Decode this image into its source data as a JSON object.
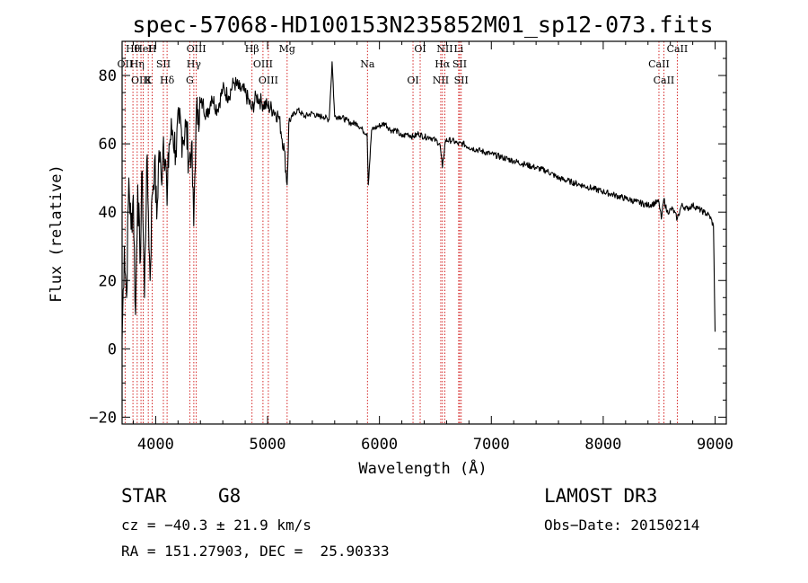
{
  "chart_data": {
    "type": "line",
    "title": "spec-57068-HD100153N235852M01_sp12-073.fits",
    "xlabel": "Wavelength (Å)",
    "ylabel": "Flux (relative)",
    "xlim": [
      3700,
      9100
    ],
    "ylim": [
      -22,
      90
    ],
    "xticks": [
      4000,
      5000,
      6000,
      7000,
      8000,
      9000
    ],
    "yticks": [
      -20,
      0,
      20,
      40,
      60,
      80
    ],
    "series": [
      {
        "name": "spectrum",
        "x": [
          3700,
          3720,
          3740,
          3760,
          3780,
          3800,
          3820,
          3840,
          3860,
          3880,
          3900,
          3920,
          3935,
          3950,
          3968,
          3990,
          4010,
          4030,
          4050,
          4070,
          4090,
          4102,
          4120,
          4150,
          4180,
          4210,
          4240,
          4270,
          4300,
          4320,
          4340,
          4360,
          4380,
          4420,
          4460,
          4500,
          4550,
          4600,
          4650,
          4700,
          4750,
          4800,
          4861,
          4900,
          4950,
          5000,
          5050,
          5100,
          5150,
          5175,
          5190,
          5220,
          5270,
          5330,
          5400,
          5450,
          5500,
          5550,
          5577,
          5600,
          5650,
          5700,
          5750,
          5800,
          5850,
          5890,
          5900,
          5930,
          5980,
          6050,
          6100,
          6150,
          6200,
          6250,
          6300,
          6350,
          6400,
          6450,
          6500,
          6540,
          6563,
          6590,
          6650,
          6700,
          6750,
          6800,
          6900,
          7000,
          7100,
          7200,
          7300,
          7400,
          7500,
          7600,
          7700,
          7800,
          7900,
          8000,
          8100,
          8200,
          8300,
          8400,
          8498,
          8520,
          8542,
          8570,
          8620,
          8662,
          8700,
          8750,
          8800,
          8850,
          8900,
          8950,
          8985,
          9000
        ],
        "values": [
          3,
          30,
          15,
          50,
          35,
          45,
          10,
          48,
          25,
          52,
          15,
          55,
          40,
          20,
          45,
          55,
          38,
          58,
          50,
          62,
          55,
          42,
          60,
          64,
          58,
          66,
          62,
          65,
          55,
          60,
          36,
          66,
          70,
          72,
          68,
          74,
          70,
          76,
          74,
          78,
          76,
          75,
          70,
          74,
          72,
          71,
          70,
          68,
          58,
          48,
          66,
          68,
          70,
          68,
          69,
          68,
          68,
          67,
          84,
          68,
          68,
          67,
          66,
          66,
          64,
          63,
          48,
          64,
          65,
          66,
          64,
          64,
          62,
          63,
          62,
          63,
          62,
          62,
          61,
          60,
          53,
          61,
          61,
          60,
          60,
          59,
          58,
          57,
          56,
          55,
          54,
          53,
          52,
          50,
          49,
          48,
          47,
          46,
          45,
          44,
          43,
          42,
          43,
          38,
          44,
          40,
          41,
          38,
          42,
          41,
          42,
          41,
          40,
          39,
          36,
          5
        ]
      }
    ],
    "line_markers": [
      {
        "label": "Hθ",
        "x": 3797
      },
      {
        "label": "OII",
        "x": 3727
      },
      {
        "label": "OIII",
        "x": 3869
      },
      {
        "label": "HeI",
        "x": 3889
      },
      {
        "label": "Hη",
        "x": 3835
      },
      {
        "label": "K",
        "x": 3934
      },
      {
        "label": "H",
        "x": 3969
      },
      {
        "label": "SII",
        "x": 4069
      },
      {
        "label": "Hδ",
        "x": 4102
      },
      {
        "label": "OIII",
        "x": 4363
      },
      {
        "label": "Hγ",
        "x": 4341
      },
      {
        "label": "G",
        "x": 4305
      },
      {
        "label": "Hβ",
        "x": 4861
      },
      {
        "label": "OIII",
        "x": 4959
      },
      {
        "label": "OIII",
        "x": 5007
      },
      {
        "label": "Mg",
        "x": 5175
      },
      {
        "label": "Na",
        "x": 5893
      },
      {
        "label": "OI",
        "x": 6300
      },
      {
        "label": "OI",
        "x": 6364
      },
      {
        "label": "Hα",
        "x": 6563
      },
      {
        "label": "NII",
        "x": 6548
      },
      {
        "label": "NII",
        "x": 6584
      },
      {
        "label": "SII",
        "x": 6717
      },
      {
        "label": "SII",
        "x": 6731
      },
      {
        "label": "Li",
        "x": 6708
      },
      {
        "label": "CaII",
        "x": 8498
      },
      {
        "label": "CaII",
        "x": 8542
      },
      {
        "label": "CaII",
        "x": 8662
      }
    ]
  },
  "info": {
    "object_class": "STAR",
    "subclass": "G8",
    "survey": "LAMOST DR3",
    "redshift": "cz = −40.3 ± 21.9 km/s",
    "obs_date": "Obs−Date: 20150214",
    "coords": "RA = 151.27903, DEC =  25.90333"
  }
}
